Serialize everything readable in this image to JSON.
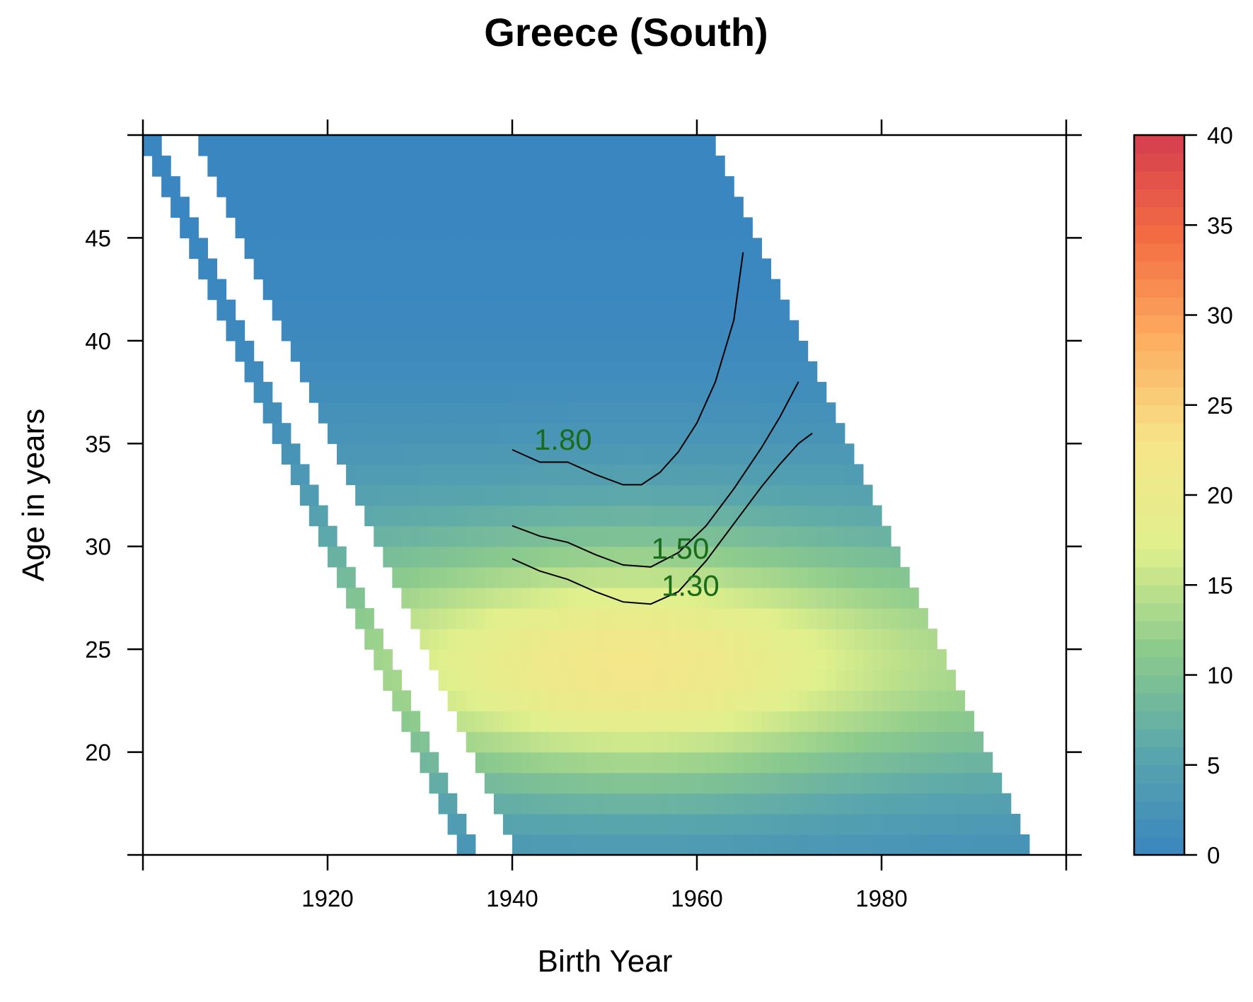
{
  "chart_data": {
    "type": "heatmap",
    "title": "Greece (South)",
    "xlabel": "Birth Year",
    "ylabel": "Age in years",
    "xlim": [
      1900,
      2000
    ],
    "ylim": [
      15,
      50
    ],
    "x_ticks": [
      1920,
      1940,
      1960,
      1980
    ],
    "x_tick_labels": [
      "1920",
      "1940",
      "1960",
      "1980"
    ],
    "y_ticks": [
      20,
      25,
      30,
      35,
      40,
      45
    ],
    "y_tick_labels": [
      "20",
      "25",
      "30",
      "35",
      "40",
      "45"
    ],
    "colorbar": {
      "min": 0,
      "max": 40,
      "ticks": [
        0,
        5,
        10,
        15,
        20,
        25,
        30,
        35,
        40
      ],
      "tick_labels": [
        "0",
        "5",
        "10",
        "15",
        "20",
        "25",
        "30",
        "35",
        "40"
      ],
      "colors": [
        "#3a86c0",
        "#5aa6ac",
        "#8ccb8d",
        "#e0f08c",
        "#f6e58a",
        "#fdae61",
        "#f46d43",
        "#d53e4f"
      ]
    },
    "surface": {
      "description_of_fit": "fertility rate by birth year and age; peak about 18 near age 24, birth year 1953",
      "peak_value": 18,
      "peak_age": 24,
      "peak_birth_year": 1953
    },
    "contours": [
      {
        "level": "1.80",
        "points": [
          [
            1940,
            34.7
          ],
          [
            1943,
            34.1
          ],
          [
            1946,
            34.1
          ],
          [
            1949,
            33.5
          ],
          [
            1952,
            33.0
          ],
          [
            1954,
            33.0
          ],
          [
            1956,
            33.6
          ],
          [
            1958,
            34.6
          ],
          [
            1960,
            36.0
          ],
          [
            1962,
            38.0
          ],
          [
            1964,
            41.0
          ],
          [
            1965,
            44.3
          ]
        ],
        "label_at": [
          1945.5,
          34.7
        ]
      },
      {
        "level": "1.50",
        "points": [
          [
            1940,
            31.0
          ],
          [
            1943,
            30.5
          ],
          [
            1946,
            30.2
          ],
          [
            1949,
            29.6
          ],
          [
            1952,
            29.1
          ],
          [
            1955,
            29.0
          ],
          [
            1958,
            29.7
          ],
          [
            1961,
            31.0
          ],
          [
            1964,
            32.8
          ],
          [
            1967,
            34.8
          ],
          [
            1969,
            36.3
          ],
          [
            1971,
            38.0
          ]
        ],
        "label_at": [
          1958.2,
          29.4
        ]
      },
      {
        "level": "1.30",
        "points": [
          [
            1940,
            29.4
          ],
          [
            1943,
            28.8
          ],
          [
            1946,
            28.4
          ],
          [
            1949,
            27.8
          ],
          [
            1952,
            27.3
          ],
          [
            1955,
            27.2
          ],
          [
            1958,
            27.8
          ],
          [
            1961,
            29.3
          ],
          [
            1964,
            31.1
          ],
          [
            1967,
            32.9
          ],
          [
            1969,
            34.0
          ],
          [
            1971,
            35.0
          ],
          [
            1972.5,
            35.5
          ]
        ],
        "label_at": [
          1959.3,
          27.6
        ]
      }
    ]
  }
}
